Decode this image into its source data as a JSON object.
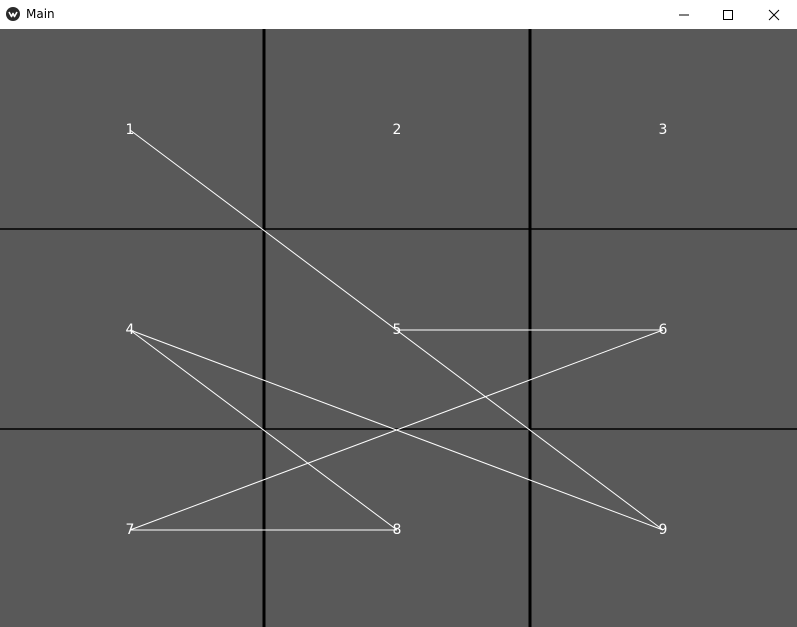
{
  "window": {
    "title": "Main",
    "icon": "app-logo-icon",
    "controls": {
      "minimize_icon": "minimize-icon",
      "maximize_icon": "maximize-icon",
      "close_icon": "close-icon"
    }
  },
  "board": {
    "background_color": "#595959",
    "grid_line_color": "#000000",
    "edge_color": "#ffffff",
    "rows": 3,
    "cols": 3,
    "nodes": [
      {
        "id": "n1",
        "label": "1"
      },
      {
        "id": "n2",
        "label": "2"
      },
      {
        "id": "n3",
        "label": "3"
      },
      {
        "id": "n4",
        "label": "4"
      },
      {
        "id": "n5",
        "label": "5"
      },
      {
        "id": "n6",
        "label": "6"
      },
      {
        "id": "n7",
        "label": "7"
      },
      {
        "id": "n8",
        "label": "8"
      },
      {
        "id": "n9",
        "label": "9"
      }
    ],
    "edges": [
      [
        "1",
        "9"
      ],
      [
        "4",
        "8"
      ],
      [
        "4",
        "9"
      ],
      [
        "5",
        "6"
      ],
      [
        "6",
        "7"
      ],
      [
        "7",
        "8"
      ]
    ]
  }
}
